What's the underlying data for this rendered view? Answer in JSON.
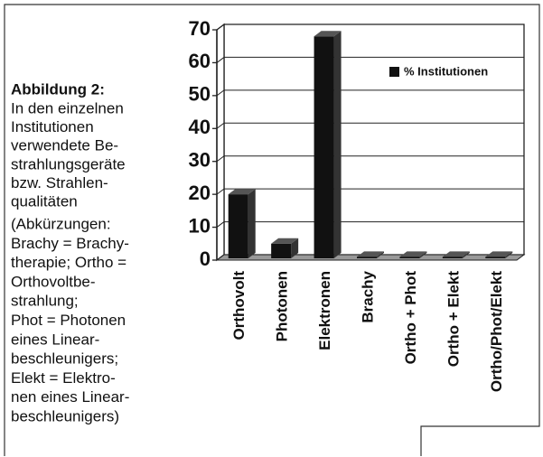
{
  "caption": {
    "title": "Abbildung 2:",
    "lines": [
      "In den einzelnen",
      "Institutionen",
      "verwendete Be-",
      "strahlungsgeräte",
      "bzw. Strahlen-",
      "qualitäten"
    ],
    "note_lines": [
      "(Abkürzungen:",
      "Brachy = Brachy-",
      "therapie; Ortho =",
      "Orthovoltbe-",
      "strahlung;",
      "Phot = Photonen",
      "eines Linear-",
      "beschleunigers;",
      "Elekt = Elektro-",
      "nen eines Linear-",
      "beschleunigers)"
    ]
  },
  "chart_data": {
    "type": "bar3d",
    "categories": [
      "Orthovolt",
      "Photonen",
      "Elektronen",
      "Brachy",
      "Ortho + Phot",
      "Ortho + Elekt",
      "Ortho/Phot/Elekt"
    ],
    "series": [
      {
        "name": "% Institutionen",
        "color": "#111111",
        "values": [
          20,
          5,
          68,
          1,
          1,
          1,
          1
        ]
      }
    ],
    "ylim": [
      0,
      70
    ],
    "yticks": [
      0,
      10,
      20,
      30,
      40,
      50,
      60,
      70
    ],
    "grid": true,
    "legend": "upper right"
  }
}
